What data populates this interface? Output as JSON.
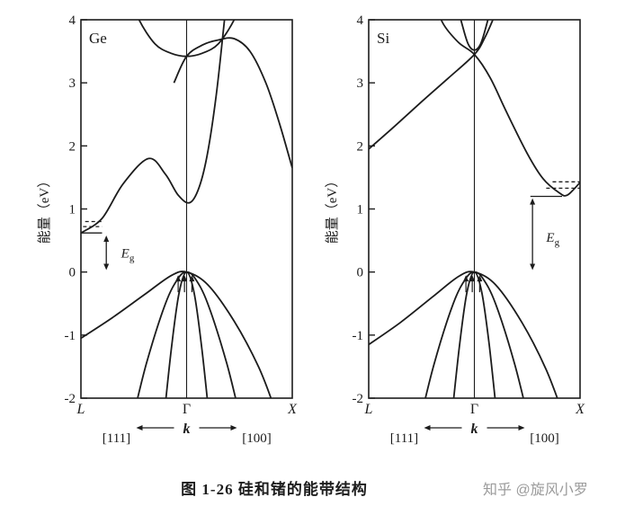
{
  "page": {
    "caption": "图 1-26  硅和锗的能带结构",
    "watermark": "知乎 @旋风小罗",
    "ink_color": "#1c1c1c",
    "watermark_color": "#9b9b9b",
    "background": "#ffffff"
  },
  "chart_data": [
    {
      "type": "line",
      "title": "Ge",
      "ylabel": "能量（eV）",
      "ylim": [
        -2,
        4
      ],
      "yticks": [
        4,
        3,
        2,
        1,
        0,
        -1,
        -2
      ],
      "xticks": [
        {
          "pos": -1,
          "label": "L",
          "italic": true
        },
        {
          "pos": 0,
          "label": "Γ",
          "italic": false
        },
        {
          "pos": 1,
          "label": "X",
          "italic": true
        }
      ],
      "k_axis": {
        "left_label": "[111]",
        "center_label": "k",
        "right_label": "[100]"
      },
      "gap_label": {
        "base": "E",
        "sub": "g"
      },
      "gap_arrow": {
        "x": -0.76,
        "from": 0.03,
        "to": 0.58,
        "label_x": -0.62,
        "label_E": 0.3
      },
      "band_extrema_lines": [
        {
          "E": 0.62,
          "x_from": -1.0,
          "x_to": -0.8,
          "dashed": false
        },
        {
          "E": 0.72,
          "x_from": -0.98,
          "x_to": -0.8,
          "dashed": true
        },
        {
          "E": 0.8,
          "x_from": -0.96,
          "x_to": -0.8,
          "dashed": true
        }
      ],
      "vb_arrows": {
        "offsets": [
          -0.08,
          -0.02,
          0.05
        ],
        "E_from": -0.32,
        "E_to": -0.05
      },
      "series": [
        {
          "name": "conduction-L-valley",
          "points": [
            [
              -1,
              0.62
            ],
            [
              -0.8,
              0.85
            ],
            [
              -0.6,
              1.4
            ],
            [
              -0.36,
              1.8
            ],
            [
              -0.2,
              1.55
            ],
            [
              -0.08,
              1.22
            ],
            [
              0.03,
              1.1
            ],
            [
              0.12,
              1.35
            ],
            [
              0.2,
              1.9
            ],
            [
              0.28,
              2.8
            ],
            [
              0.34,
              3.7
            ],
            [
              0.38,
              4.35
            ]
          ]
        },
        {
          "name": "conduction-gamma-upper",
          "points": [
            [
              -0.52,
              4.35
            ],
            [
              -0.45,
              4.0
            ],
            [
              -0.3,
              3.62
            ],
            [
              -0.15,
              3.47
            ],
            [
              0,
              3.42
            ],
            [
              0.15,
              3.47
            ],
            [
              0.3,
              3.62
            ],
            [
              0.45,
              4.0
            ],
            [
              0.52,
              4.35
            ]
          ]
        },
        {
          "name": "conduction-100-branch",
          "points": [
            [
              -0.12,
              3.0
            ],
            [
              0,
              3.42
            ],
            [
              0.15,
              3.6
            ],
            [
              0.3,
              3.68
            ],
            [
              0.45,
              3.7
            ],
            [
              0.6,
              3.5
            ],
            [
              0.75,
              3.0
            ],
            [
              0.88,
              2.35
            ],
            [
              1,
              1.65
            ]
          ]
        },
        {
          "name": "valence-heavy-hole",
          "points": [
            [
              -1,
              -1.05
            ],
            [
              -0.7,
              -0.72
            ],
            [
              -0.4,
              -0.36
            ],
            [
              -0.15,
              -0.06
            ],
            [
              0,
              0
            ],
            [
              0.2,
              -0.2
            ],
            [
              0.45,
              -0.78
            ],
            [
              0.68,
              -1.5
            ],
            [
              0.82,
              -2.1
            ],
            [
              0.9,
              -2.5
            ]
          ]
        },
        {
          "name": "valence-light-hole",
          "points": [
            [
              -0.52,
              -2.4
            ],
            [
              -0.38,
              -1.45
            ],
            [
              -0.2,
              -0.5
            ],
            [
              -0.08,
              -0.1
            ],
            [
              0,
              0
            ],
            [
              0.08,
              -0.1
            ],
            [
              0.2,
              -0.5
            ],
            [
              0.38,
              -1.45
            ],
            [
              0.52,
              -2.4
            ]
          ]
        },
        {
          "name": "valence-splitoff",
          "points": [
            [
              -0.22,
              -2.4
            ],
            [
              -0.14,
              -1.15
            ],
            [
              -0.07,
              -0.32
            ],
            [
              0,
              0
            ],
            [
              0.07,
              -0.32
            ],
            [
              0.14,
              -1.15
            ],
            [
              0.22,
              -2.4
            ]
          ]
        }
      ]
    },
    {
      "type": "line",
      "title": "Si",
      "ylabel": "能量（eV）",
      "ylim": [
        -2,
        4
      ],
      "yticks": [
        4,
        3,
        2,
        1,
        0,
        -1,
        -2
      ],
      "xticks": [
        {
          "pos": -1,
          "label": "L",
          "italic": true
        },
        {
          "pos": 0,
          "label": "Γ",
          "italic": false
        },
        {
          "pos": 1,
          "label": "X",
          "italic": true
        }
      ],
      "k_axis": {
        "left_label": "[111]",
        "center_label": "k",
        "right_label": "[100]"
      },
      "gap_label": {
        "base": "E",
        "sub": "g"
      },
      "gap_arrow": {
        "x": 0.55,
        "from": 0.03,
        "to": 1.17,
        "label_x": 0.68,
        "label_E": 0.55
      },
      "band_extrema_lines": [
        {
          "E": 1.2,
          "x_from": 0.53,
          "x_to": 0.83,
          "dashed": false
        },
        {
          "E": 1.33,
          "x_from": 0.68,
          "x_to": 1.0,
          "dashed": true
        },
        {
          "E": 1.43,
          "x_from": 0.74,
          "x_to": 1.0,
          "dashed": true
        }
      ],
      "vb_arrows": {
        "offsets": [
          -0.08,
          -0.02,
          0.05
        ],
        "E_from": -0.32,
        "E_to": -0.05
      },
      "series": [
        {
          "name": "conduction-delta-valley",
          "points": [
            [
              -0.38,
              4.35
            ],
            [
              -0.3,
              3.95
            ],
            [
              -0.15,
              3.64
            ],
            [
              0,
              3.45
            ],
            [
              0.15,
              3.08
            ],
            [
              0.3,
              2.55
            ],
            [
              0.5,
              1.88
            ],
            [
              0.65,
              1.48
            ],
            [
              0.8,
              1.26
            ],
            [
              0.88,
              1.22
            ],
            [
              1,
              1.42
            ]
          ]
        },
        {
          "name": "conduction-rising-branch",
          "points": [
            [
              -1,
              1.95
            ],
            [
              -0.75,
              2.32
            ],
            [
              -0.5,
              2.7
            ],
            [
              -0.25,
              3.07
            ],
            [
              0,
              3.45
            ],
            [
              0.1,
              3.72
            ],
            [
              0.2,
              4.1
            ],
            [
              0.26,
              4.35
            ]
          ]
        },
        {
          "name": "conduction-gamma-upper",
          "points": [
            [
              -0.18,
              4.35
            ],
            [
              -0.12,
              3.95
            ],
            [
              -0.06,
              3.62
            ],
            [
              0,
              3.52
            ],
            [
              0.06,
              3.62
            ],
            [
              0.12,
              3.95
            ],
            [
              0.18,
              4.35
            ]
          ]
        },
        {
          "name": "valence-heavy-hole",
          "points": [
            [
              -1,
              -1.15
            ],
            [
              -0.7,
              -0.8
            ],
            [
              -0.4,
              -0.4
            ],
            [
              -0.15,
              -0.07
            ],
            [
              0,
              0
            ],
            [
              0.2,
              -0.2
            ],
            [
              0.45,
              -0.8
            ],
            [
              0.68,
              -1.55
            ],
            [
              0.85,
              -2.3
            ]
          ]
        },
        {
          "name": "valence-light-hole",
          "points": [
            [
              -0.52,
              -2.4
            ],
            [
              -0.38,
              -1.45
            ],
            [
              -0.2,
              -0.5
            ],
            [
              -0.08,
              -0.1
            ],
            [
              0,
              0
            ],
            [
              0.08,
              -0.1
            ],
            [
              0.2,
              -0.5
            ],
            [
              0.38,
              -1.45
            ],
            [
              0.52,
              -2.4
            ]
          ]
        },
        {
          "name": "valence-splitoff",
          "points": [
            [
              -0.22,
              -2.4
            ],
            [
              -0.14,
              -1.15
            ],
            [
              -0.07,
              -0.32
            ],
            [
              0,
              0
            ],
            [
              0.07,
              -0.32
            ],
            [
              0.14,
              -1.15
            ],
            [
              0.22,
              -2.4
            ]
          ]
        }
      ]
    }
  ]
}
